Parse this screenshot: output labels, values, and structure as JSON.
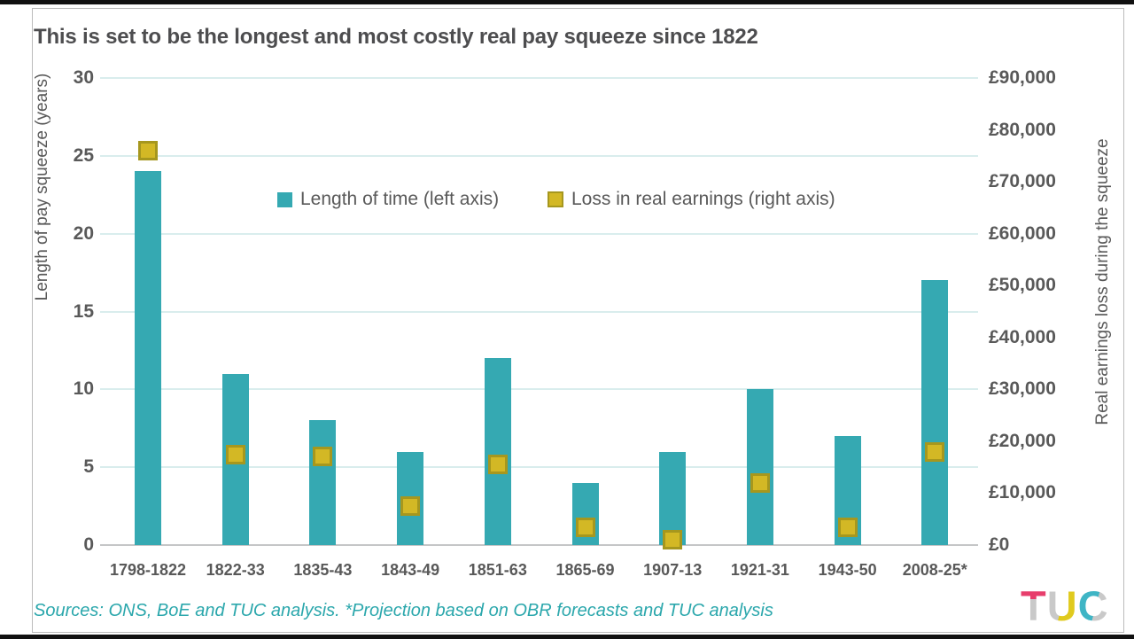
{
  "page": {
    "title": "This is set to be the longest and most costly real pay squeeze since 1822",
    "source_note": "Sources: ONS, BoE and TUC analysis. *Projection based on OBR forecasts and TUC analysis",
    "logo": {
      "t": "T",
      "u": "U",
      "c": "C"
    }
  },
  "chart_data": {
    "type": "bar",
    "title": "This is set to be the longest and most costly real pay squeeze since 1822",
    "categories": [
      "1798-1822",
      "1822-33",
      "1835-43",
      "1843-49",
      "1851-63",
      "1865-69",
      "1907-13",
      "1921-31",
      "1943-50",
      "2008-25*"
    ],
    "series": [
      {
        "name": "Length of time (left axis)",
        "type": "bar",
        "axis": "left",
        "color": "#35A9B2",
        "values": [
          24,
          11,
          8,
          6,
          12,
          4,
          6,
          10,
          7,
          17
        ]
      },
      {
        "name": "Loss in real earnings (right axis)",
        "type": "square-marker",
        "axis": "right",
        "color": "#D3B825",
        "border_color": "#A6971E",
        "values": [
          76000,
          17500,
          17000,
          7500,
          15500,
          3500,
          1000,
          12000,
          3500,
          18000
        ]
      }
    ],
    "left_axis": {
      "label": "Length of pay squeeze (years)",
      "min": 0,
      "max": 30,
      "tick_step": 5,
      "ticks": [
        "30",
        "25",
        "20",
        "15",
        "10",
        "5",
        "0"
      ]
    },
    "right_axis": {
      "label": "Real earnings loss during the squeeze",
      "min": 0,
      "max": 90000,
      "tick_step": 10000,
      "ticks": [
        "£90,000",
        "£80,000",
        "£70,000",
        "£60,000",
        "£50,000",
        "£40,000",
        "£30,000",
        "£20,000",
        "£10,000",
        "£0"
      ]
    },
    "grid": true,
    "legend_position": "top-center"
  },
  "colors": {
    "bar_teal": "#35A9B2",
    "marker_yellow": "#D3B825",
    "marker_border": "#A6971E",
    "gridline": "#D9EDED",
    "zero_line": "#C5C6C7",
    "text_gray": "#595959",
    "source_teal": "#2BA7AC",
    "logo_pink": "#E73E6C",
    "logo_yellow": "#E0CA1E",
    "logo_teal": "#3FB5C5",
    "logo_gray": "#C9C9C9"
  }
}
